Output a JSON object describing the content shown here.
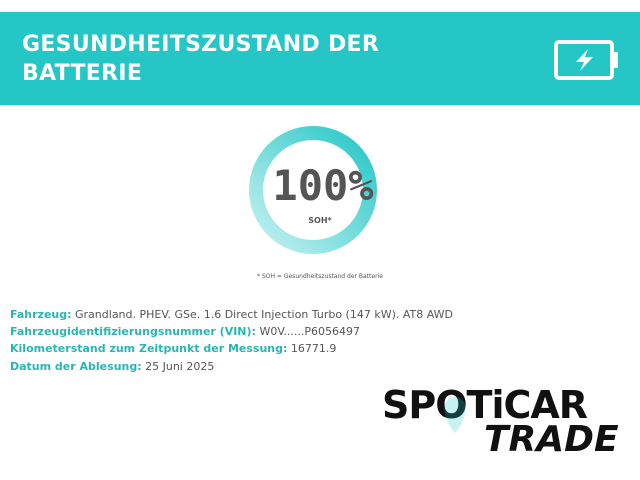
{
  "header": {
    "title_lines": [
      "GESUNDHEITSZUSTAND DER",
      "BATTERIE"
    ]
  },
  "gauge": {
    "value": "100%",
    "label": "SOH*",
    "footnote": "* SOH = Gesundheitszustand der Batterie"
  },
  "details": [
    {
      "label": "Fahrzeug:",
      "value": "Grandland. PHEV. GSe. 1.6 Direct Injection Turbo (147 kW). AT8 AWD"
    },
    {
      "label": "Fahrzeugidentifizierungsnummer (VIN):",
      "value": "W0V......P6056497"
    },
    {
      "label": "Kilometerstand zum Zeitpunkt der Messung:",
      "value": "16771.9"
    },
    {
      "label": "Datum der Ablesung:",
      "value": "25 Juni 2025"
    }
  ],
  "logo": {
    "brand": "SPOTiCAR",
    "sub": "TRADE"
  }
}
